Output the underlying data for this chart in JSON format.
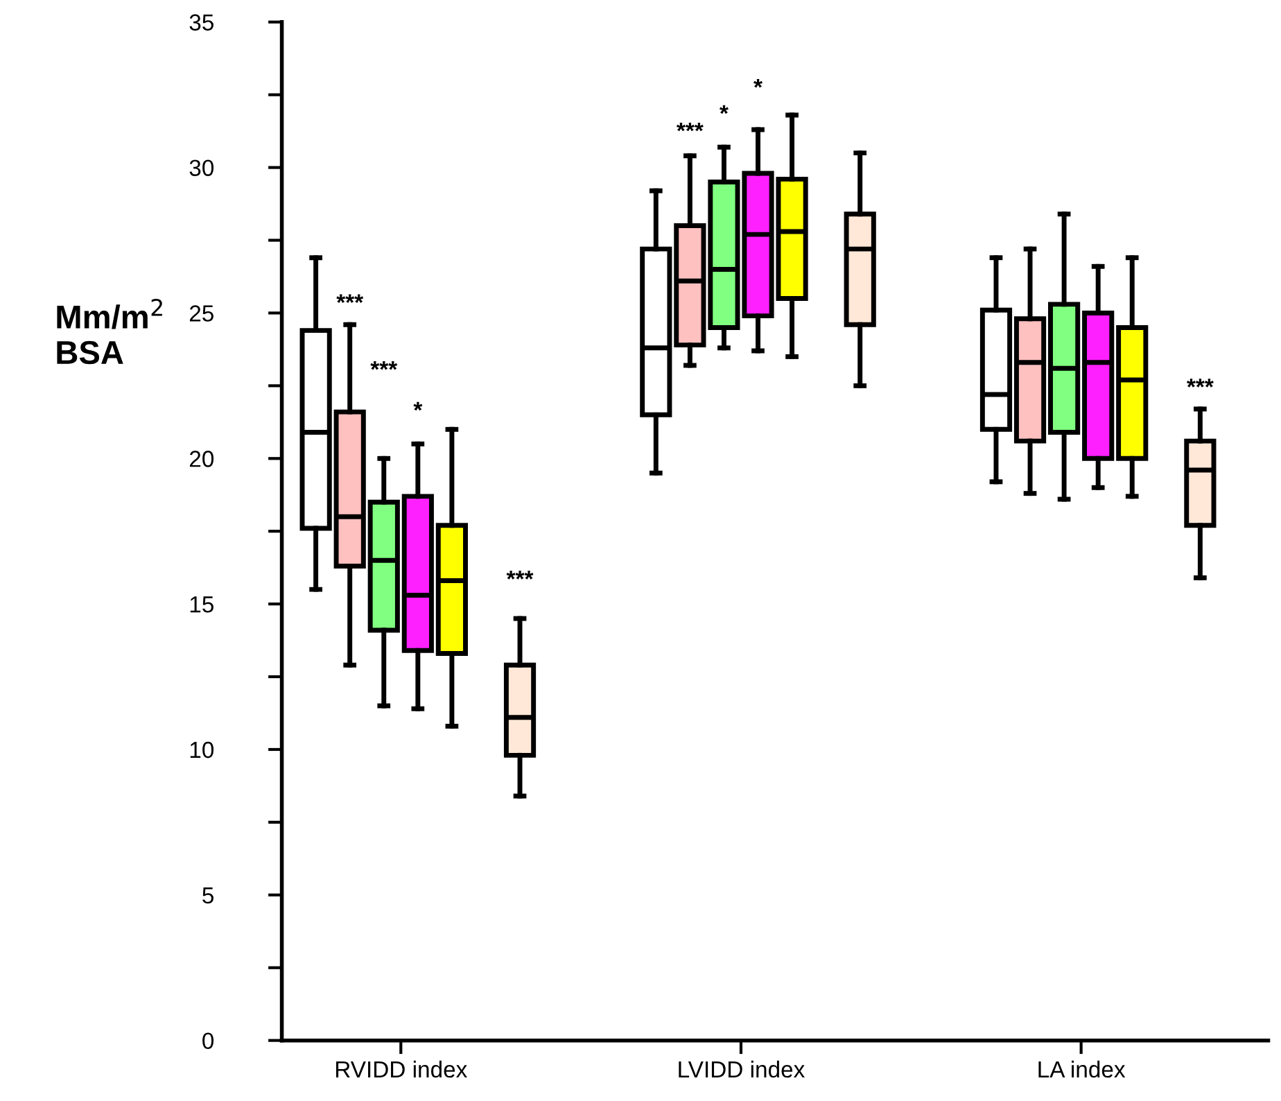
{
  "chart_data": {
    "type": "box",
    "ylabel": "Mm/m$^{2}$\nBSA",
    "categories": [
      "RVIDD index",
      "LVIDD index",
      "LA index"
    ],
    "ylim": [
      0,
      35
    ],
    "yticks": [
      0,
      {
        "value": 2.5,
        "label": null
      },
      5,
      {
        "value": 7.5,
        "label": null
      },
      10,
      {
        "value": 12.5,
        "label": null
      },
      15,
      {
        "value": 17.5,
        "label": null
      },
      20,
      {
        "value": 22.5,
        "label": null
      },
      25,
      {
        "value": 27.5,
        "label": null
      },
      30,
      {
        "value": 32.5,
        "label": null
      },
      35
    ],
    "grid": false,
    "legend": false,
    "series": [
      {
        "color": "#ffffff",
        "boxes": [
          {
            "low": 15.5,
            "q1": 17.6,
            "median": 20.9,
            "q3": 24.4,
            "high": 26.9
          },
          {
            "low": 19.5,
            "q1": 21.5,
            "median": 23.8,
            "q3": 27.2,
            "high": 29.2
          },
          {
            "low": 19.2,
            "q1": 21.0,
            "median": 22.2,
            "q3": 25.1,
            "high": 26.9
          }
        ]
      },
      {
        "color": "#ffc0c0",
        "boxes": [
          {
            "low": 12.9,
            "q1": 16.3,
            "median": 18.0,
            "q3": 21.6,
            "high": 24.6
          },
          {
            "low": 23.2,
            "q1": 23.9,
            "median": 26.1,
            "q3": 28.0,
            "high": 30.4
          },
          {
            "low": 18.8,
            "q1": 20.6,
            "median": 23.3,
            "q3": 24.8,
            "high": 27.2
          }
        ]
      },
      {
        "color": "#80ff80",
        "boxes": [
          {
            "low": 11.5,
            "q1": 14.1,
            "median": 16.5,
            "q3": 18.5,
            "high": 20.0
          },
          {
            "low": 23.8,
            "q1": 24.5,
            "median": 26.5,
            "q3": 29.5,
            "high": 30.7
          },
          {
            "low": 18.6,
            "q1": 20.9,
            "median": 23.1,
            "q3": 25.3,
            "high": 28.4
          }
        ]
      },
      {
        "color": "#ff20ff",
        "boxes": [
          {
            "low": 11.4,
            "q1": 13.4,
            "median": 15.3,
            "q3": 18.7,
            "high": 20.5
          },
          {
            "low": 23.7,
            "q1": 24.9,
            "median": 27.7,
            "q3": 29.8,
            "high": 31.3
          },
          {
            "low": 19.0,
            "q1": 20.0,
            "median": 23.3,
            "q3": 25.0,
            "high": 26.6
          }
        ]
      },
      {
        "color": "#ffff00",
        "boxes": [
          {
            "low": 10.8,
            "q1": 13.3,
            "median": 15.8,
            "q3": 17.7,
            "high": 21.0
          },
          {
            "low": 23.5,
            "q1": 25.5,
            "median": 27.8,
            "q3": 29.6,
            "high": 31.8
          },
          {
            "low": 18.7,
            "q1": 20.0,
            "median": 22.7,
            "q3": 24.5,
            "high": 26.9
          }
        ]
      },
      {
        "color": "#ffe8d8",
        "boxes": [
          {
            "low": 8.4,
            "q1": 9.8,
            "median": 11.1,
            "q3": 12.9,
            "high": 14.5
          },
          {
            "low": 22.5,
            "q1": 24.6,
            "median": 27.2,
            "q3": 28.4,
            "high": 30.5
          },
          {
            "low": 15.9,
            "q1": 17.7,
            "median": 19.6,
            "q3": 20.6,
            "high": 21.7
          }
        ]
      }
    ],
    "annotations": [
      "***",
      "***",
      "*",
      "***",
      "***",
      "*",
      "*",
      "***"
    ]
  }
}
